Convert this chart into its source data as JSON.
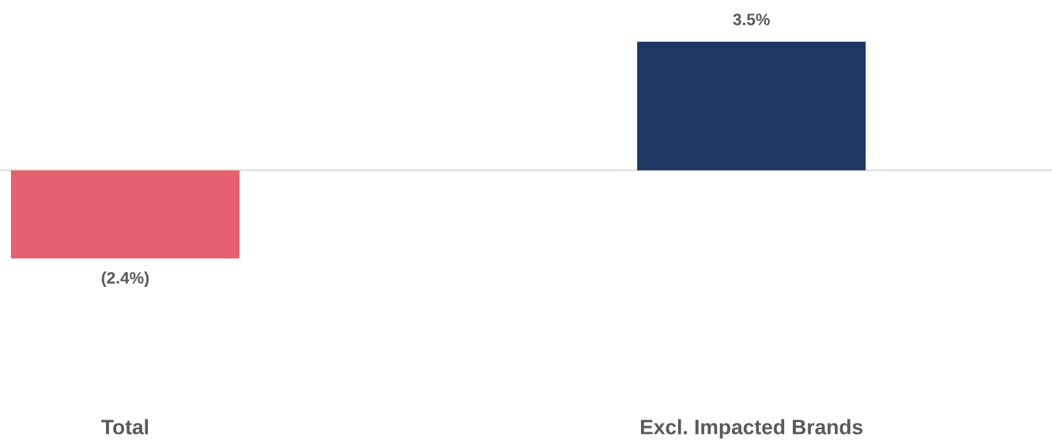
{
  "chart_data": {
    "type": "bar",
    "categories": [
      "Total",
      "Excl. Impacted Brands"
    ],
    "values": [
      -2.4,
      3.5
    ],
    "colors": [
      "#e5616f",
      "#1f3763"
    ],
    "value_labels": [
      "(2.4%)",
      "3.5%"
    ],
    "grid": false,
    "legend": false,
    "tick_labels": "x"
  }
}
